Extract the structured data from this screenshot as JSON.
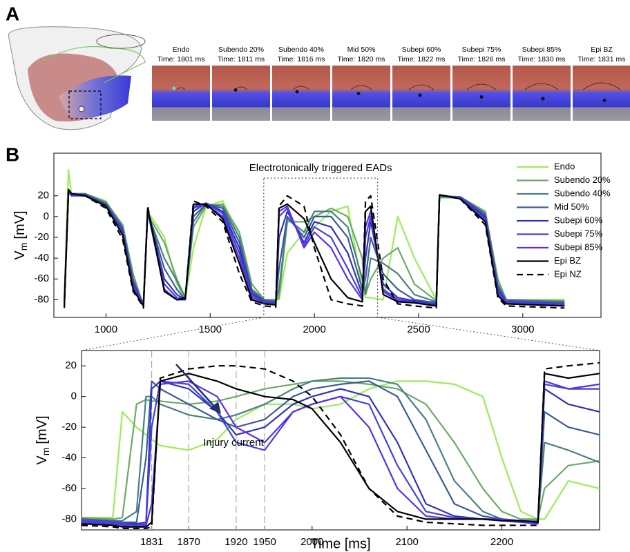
{
  "panel_a": {
    "label": "A",
    "frames": [
      {
        "name": "Endo",
        "time": "Time: 1801 ms"
      },
      {
        "name": "Subendo 20%",
        "time": "Time: 1811 ms"
      },
      {
        "name": "Subendo 40%",
        "time": "Time: 1816 ms"
      },
      {
        "name": "Mid 50%",
        "time": "Time: 1820 ms"
      },
      {
        "name": "Subepi 60%",
        "time": "Time: 1822 ms"
      },
      {
        "name": "Subepi 75%",
        "time": "Time: 1826 ms"
      },
      {
        "name": "Subepi 85%",
        "time": "Time: 1830 ms"
      },
      {
        "name": "Epi BZ",
        "time": "Time: 1831 ms"
      }
    ]
  },
  "panel_b_label": "B",
  "chart_data": [
    {
      "type": "line",
      "annotation": "Electrotonically triggered EADs",
      "ylabel": "V",
      "ylabel_sub": "m",
      "ylabel_unit": "[mV]",
      "xlim": [
        750,
        3375
      ],
      "ylim": [
        -97,
        61
      ],
      "xticks": [
        1000,
        1500,
        2000,
        2500,
        3000
      ],
      "yticks": [
        -80,
        -60,
        -40,
        -20,
        0,
        20
      ],
      "legend": "upper right",
      "zoom_box": {
        "xlim": [
          1757,
          2303
        ],
        "ylim": [
          -97,
          37
        ]
      },
      "x": [
        800,
        820,
        835,
        900,
        1000,
        1080,
        1130,
        1170,
        1180,
        1200,
        1280,
        1340,
        1380,
        1420,
        1480,
        1560,
        1640,
        1700,
        1760,
        1815,
        1830,
        1870,
        1950,
        2000,
        2080,
        2160,
        2230,
        2245,
        2270,
        2330,
        2400,
        2480,
        2585,
        2600,
        2700,
        2820,
        2880,
        2920,
        3200
      ],
      "series": [
        {
          "name": "Endo",
          "color": "#99ee55",
          "dash": false,
          "values": [
            -80,
            45,
            20,
            22,
            15,
            -10,
            -60,
            -80,
            -82,
            5,
            -20,
            -65,
            -80,
            -30,
            10,
            15,
            -20,
            -70,
            -80,
            -80,
            -80,
            -35,
            -15,
            -10,
            5,
            10,
            -70,
            -78,
            -78,
            -80,
            0,
            -40,
            -80,
            18,
            18,
            0,
            -70,
            -80,
            -80
          ]
        },
        {
          "name": "Subendo 20%",
          "color": "#6aaa66",
          "dash": false,
          "values": [
            -81,
            25,
            22,
            22,
            14,
            -8,
            -55,
            -80,
            -82,
            2,
            -25,
            -60,
            -78,
            -10,
            10,
            12,
            -15,
            -65,
            -80,
            -80,
            -78,
            -5,
            -5,
            0,
            8,
            0,
            -40,
            -75,
            -60,
            -40,
            -30,
            -65,
            -81,
            19,
            19,
            5,
            -60,
            -80,
            -81
          ]
        },
        {
          "name": "Subendo 40%",
          "color": "#4a8080",
          "dash": false,
          "values": [
            -82,
            25,
            22,
            22,
            13,
            -10,
            -60,
            -80,
            -83,
            3,
            -40,
            -62,
            -78,
            -5,
            12,
            10,
            -20,
            -70,
            -80,
            -81,
            -70,
            -2,
            -15,
            5,
            5,
            -10,
            -60,
            -75,
            -40,
            -45,
            -55,
            -75,
            -82,
            19,
            19,
            3,
            -65,
            -80,
            -82
          ]
        },
        {
          "name": "Mid 50%",
          "color": "#3a5a9a",
          "dash": false,
          "values": [
            -83,
            24,
            22,
            21,
            12,
            -12,
            -62,
            -80,
            -84,
            4,
            -50,
            -70,
            -80,
            0,
            12,
            8,
            -25,
            -72,
            -81,
            -82,
            -50,
            0,
            -20,
            0,
            0,
            -20,
            -70,
            -60,
            -20,
            -55,
            -70,
            -80,
            -83,
            20,
            19,
            2,
            -68,
            -81,
            -83
          ]
        },
        {
          "name": "Subepi 60%",
          "color": "#3030c0",
          "dash": false,
          "values": [
            -84,
            24,
            21,
            21,
            11,
            -14,
            -64,
            -81,
            -85,
            5,
            -60,
            -75,
            -80,
            5,
            13,
            5,
            -30,
            -74,
            -82,
            -83,
            -20,
            5,
            -25,
            -5,
            -10,
            -35,
            -75,
            -40,
            -5,
            -65,
            -78,
            -81,
            -84,
            20,
            18,
            0,
            -70,
            -82,
            -84
          ]
        },
        {
          "name": "Subepi 75%",
          "color": "#4040e0",
          "dash": false,
          "values": [
            -84,
            23,
            21,
            20,
            10,
            -15,
            -66,
            -81,
            -85,
            5,
            -65,
            -78,
            -80,
            8,
            13,
            3,
            -35,
            -76,
            -82,
            -83,
            0,
            8,
            -28,
            -10,
            -20,
            -50,
            -78,
            -20,
            0,
            -70,
            -80,
            -82,
            -84,
            20,
            18,
            -2,
            -72,
            -82,
            -84
          ]
        },
        {
          "name": "Subepi 85%",
          "color": "#5a2df0",
          "dash": false,
          "values": [
            -85,
            23,
            20,
            20,
            10,
            -16,
            -68,
            -82,
            -86,
            5,
            -70,
            -80,
            -80,
            10,
            12,
            0,
            -40,
            -78,
            -83,
            -84,
            5,
            10,
            -30,
            -15,
            -30,
            -60,
            -80,
            -10,
            5,
            -72,
            -81,
            -82,
            -85,
            21,
            18,
            -3,
            -74,
            -83,
            -85
          ]
        },
        {
          "name": "Epi BZ",
          "color": "#000000",
          "dash": false,
          "values": [
            -86,
            26,
            22,
            20,
            10,
            -18,
            -70,
            -83,
            -86,
            8,
            -72,
            -80,
            -79,
            12,
            12,
            -2,
            -45,
            -80,
            -84,
            -85,
            8,
            12,
            -2,
            -25,
            -60,
            -78,
            -82,
            5,
            10,
            -75,
            -82,
            -83,
            -86,
            21,
            17,
            -5,
            -76,
            -84,
            -86
          ]
        },
        {
          "name": "Epi NZ",
          "color": "#000000",
          "dash": true,
          "values": [
            -88,
            26,
            22,
            20,
            8,
            -22,
            -72,
            -84,
            -88,
            10,
            -72,
            -80,
            -78,
            15,
            10,
            -5,
            -55,
            -82,
            -86,
            -87,
            10,
            20,
            10,
            -30,
            -80,
            -84,
            -86,
            15,
            20,
            -60,
            -84,
            -86,
            -88,
            21,
            17,
            -8,
            -78,
            -86,
            -88
          ]
        }
      ]
    },
    {
      "type": "line",
      "annotation": "Injury current",
      "ylabel": "V",
      "ylabel_sub": "m",
      "ylabel_unit": "[mV]",
      "xlabel": "Time [ms]",
      "xlim": [
        1757,
        2303
      ],
      "ylim": [
        -87,
        30
      ],
      "xticks": [
        1831,
        1870,
        1920,
        1950,
        2000,
        2100,
        2200
      ],
      "yticks": [
        -80,
        -60,
        -40,
        -20,
        0,
        20
      ],
      "xguides": [
        1831,
        1870,
        1920,
        1950
      ],
      "x": [
        1757,
        1790,
        1800,
        1815,
        1825,
        1831,
        1840,
        1870,
        1900,
        1920,
        1950,
        1980,
        2000,
        2030,
        2060,
        2090,
        2120,
        2150,
        2180,
        2200,
        2220,
        2238,
        2245,
        2270,
        2303
      ],
      "series": [
        {
          "name": "Endo",
          "color": "#99ee55",
          "dash": false,
          "values": [
            -79,
            -79,
            -10,
            -20,
            -25,
            -28,
            -32,
            -35,
            -28,
            -15,
            -5,
            -5,
            -8,
            -5,
            5,
            10,
            10,
            8,
            0,
            -40,
            -75,
            -80,
            -80,
            -55,
            -60
          ]
        },
        {
          "name": "Subendo 20%",
          "color": "#6aaa66",
          "dash": false,
          "values": [
            -79,
            -80,
            -79,
            -5,
            -2,
            -3,
            -3,
            -5,
            -3,
            0,
            5,
            8,
            10,
            10,
            8,
            5,
            -5,
            -30,
            -60,
            -75,
            -80,
            -80,
            -60,
            -45,
            -42
          ]
        },
        {
          "name": "Subendo 40%",
          "color": "#4a8080",
          "dash": false,
          "values": [
            -80,
            -81,
            -81,
            -75,
            0,
            0,
            -5,
            -12,
            -15,
            -12,
            -5,
            5,
            10,
            12,
            12,
            8,
            -15,
            -55,
            -75,
            -80,
            -81,
            -81,
            -30,
            -35,
            -43
          ]
        },
        {
          "name": "Mid 50%",
          "color": "#3a5a9a",
          "dash": false,
          "values": [
            -80,
            -81,
            -82,
            -82,
            -40,
            10,
            5,
            -5,
            -15,
            -20,
            -15,
            0,
            5,
            8,
            10,
            0,
            -35,
            -70,
            -78,
            -80,
            -81,
            -82,
            -10,
            -20,
            -25
          ]
        },
        {
          "name": "Subepi 60%",
          "color": "#3030c0",
          "dash": false,
          "values": [
            -81,
            -82,
            -83,
            -83,
            -82,
            5,
            10,
            5,
            -10,
            -25,
            -20,
            -5,
            0,
            5,
            0,
            -30,
            -70,
            -78,
            -80,
            -80,
            -81,
            -82,
            5,
            -5,
            -10
          ]
        },
        {
          "name": "Subepi 75%",
          "color": "#4040e0",
          "dash": false,
          "values": [
            -81,
            -82,
            -83,
            -84,
            -83,
            -20,
            10,
            8,
            -10,
            -30,
            -35,
            -10,
            -5,
            0,
            -5,
            -45,
            -75,
            -79,
            -80,
            -80,
            -81,
            -82,
            8,
            5,
            5
          ]
        },
        {
          "name": "Subepi 85%",
          "color": "#5a2df0",
          "dash": false,
          "values": [
            -82,
            -83,
            -84,
            -85,
            -84,
            -70,
            8,
            10,
            0,
            -20,
            -30,
            -10,
            -5,
            0,
            -20,
            -60,
            -78,
            -80,
            -80,
            -81,
            -82,
            -83,
            10,
            5,
            8
          ]
        },
        {
          "name": "Epi BZ",
          "color": "#000000",
          "dash": false,
          "values": [
            -83,
            -84,
            -85,
            -85,
            -85,
            -82,
            10,
            15,
            10,
            5,
            0,
            -2,
            -8,
            -30,
            -60,
            -75,
            -80,
            -80,
            -80,
            -81,
            -81,
            -82,
            15,
            12,
            15
          ]
        },
        {
          "name": "Epi NZ",
          "color": "#000000",
          "dash": true,
          "values": [
            -84,
            -85,
            -86,
            -86,
            -86,
            -85,
            12,
            18,
            20,
            20,
            18,
            10,
            0,
            -25,
            -60,
            -78,
            -82,
            -83,
            -84,
            -84,
            -84,
            -84,
            18,
            20,
            22
          ]
        }
      ]
    }
  ]
}
